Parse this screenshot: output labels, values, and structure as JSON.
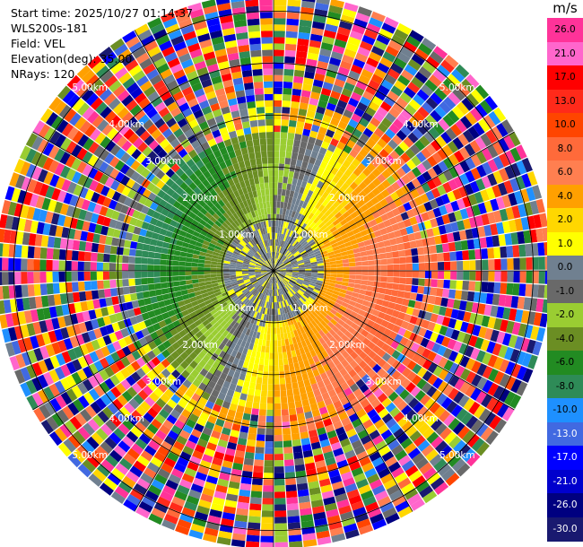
{
  "info": {
    "start_time": "Start time: 2025/10/27 01:14:37",
    "instrument": "WLS200s-181",
    "field": "Field: VEL",
    "elevation": "Elevation(deg): 35.00",
    "nrays": "NRays: 120"
  },
  "colorbar": {
    "unit": "m/s",
    "ticks": [
      "26.0",
      "21.0",
      "17.0",
      "13.0",
      "10.0",
      "8.0",
      "6.0",
      "4.0",
      "2.0",
      "1.0",
      "0.0",
      "-1.0",
      "-2.0",
      "-4.0",
      "-6.0",
      "-8.0",
      "-10.0",
      "-13.0",
      "-17.0",
      "-21.0",
      "-26.0",
      "-30.0"
    ],
    "colors": [
      "#ff3399",
      "#ff66cc",
      "#ff0000",
      "#ff2a1a",
      "#ff4500",
      "#ff6a3a",
      "#ff7f50",
      "#ffa000",
      "#ffd700",
      "#ffff00",
      "#708090",
      "#696969",
      "#9acd32",
      "#6b8e23",
      "#228b22",
      "#2e8b57",
      "#1e90ff",
      "#4169e1",
      "#0000ff",
      "#0000cd",
      "#000080",
      "#191970"
    ]
  },
  "chart_data": {
    "type": "ppi",
    "field": "VEL",
    "nrays": 120,
    "elevation_deg": 35.0,
    "range_rings_km": [
      1,
      2,
      3,
      4,
      5
    ],
    "ring_labels": [
      "1.00km",
      "2.00km",
      "3.00km",
      "4.00km",
      "5.00km"
    ],
    "max_range_km": 5.3,
    "vmin": -30.0,
    "vmax": 26.0,
    "grid": true
  }
}
